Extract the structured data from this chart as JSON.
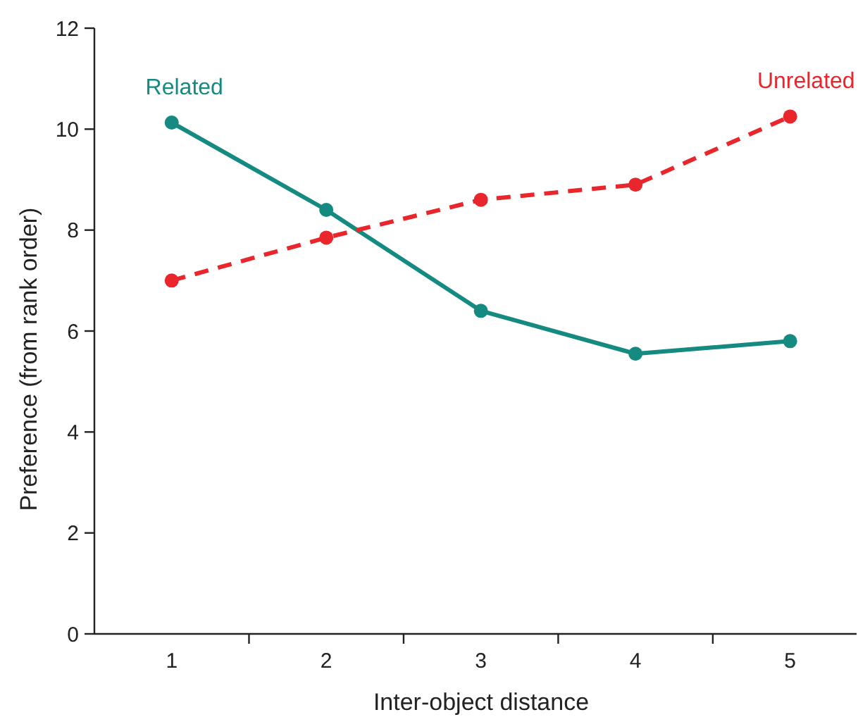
{
  "chart_data": {
    "type": "line",
    "xlabel": "Inter-object distance",
    "ylabel": "Preference (from rank order)",
    "x": [
      1,
      2,
      3,
      4,
      5
    ],
    "xlim": [
      0.5,
      5.43
    ],
    "xticks": [
      1,
      {
        "value": 1.5,
        "label": null
      },
      2,
      {
        "value": 2.5,
        "label": null
      },
      3,
      {
        "value": 3.5,
        "label": null
      },
      4,
      {
        "value": 4.5,
        "label": null
      },
      5
    ],
    "ylim": [
      0,
      12
    ],
    "yticks": [
      0,
      2,
      4,
      6,
      8,
      10,
      12
    ],
    "grid": false,
    "marker": "circle",
    "series": [
      {
        "name": "Related",
        "color": "#148a80",
        "values": [
          10.13,
          8.4,
          6.4,
          5.55,
          5.8
        ],
        "line_style": "solid"
      },
      {
        "name": "Unrelated",
        "color": "#e8262b",
        "values": [
          7.0,
          7.85,
          8.6,
          8.9,
          10.25
        ],
        "line_style": "dashed"
      }
    ]
  }
}
